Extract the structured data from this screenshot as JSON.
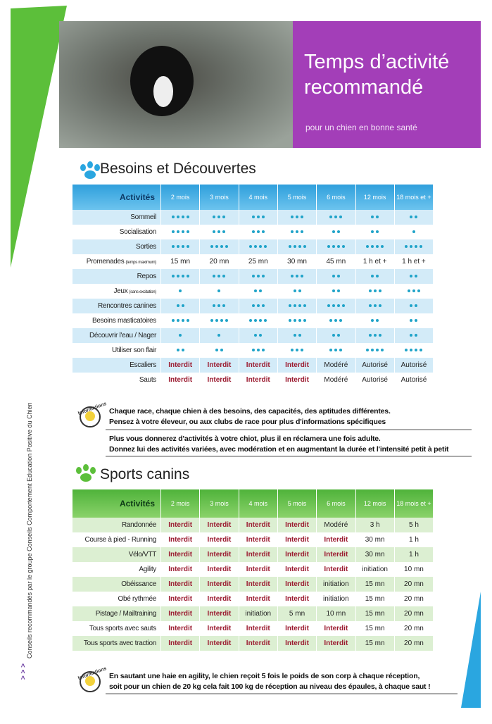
{
  "header": {
    "title_lines": [
      "Temps d’activité",
      "recommandé"
    ],
    "subtitle": "pour un chien en bonne santé"
  },
  "side_note": "Conseils recommandés par le groupe Conseils Comportement Education Positive du Chien",
  "side_arrows": "> > >",
  "info_label": "Informations",
  "section1": {
    "title": "Besoins et Découvertes",
    "table": {
      "header": [
        "Activités",
        "2 mois",
        "3 mois",
        "4 mois",
        "5 mois",
        "6 mois",
        "12 mois",
        "18 mois et +"
      ],
      "rows": [
        {
          "label": "Sommeil",
          "cells": [
            4,
            3,
            3,
            3,
            3,
            2,
            2
          ]
        },
        {
          "label": "Socialisation",
          "cells": [
            4,
            3,
            3,
            3,
            2,
            2,
            1
          ]
        },
        {
          "label": "Sorties",
          "cells": [
            4,
            4,
            4,
            4,
            4,
            4,
            4
          ]
        },
        {
          "label": "Promenades",
          "note": "(temps maximum)",
          "cells": [
            "15 mn",
            "20 mn",
            "25 mn",
            "30 mn",
            "45 mn",
            "1 h et +",
            "1 h et +"
          ]
        },
        {
          "label": "Repos",
          "cells": [
            4,
            3,
            3,
            3,
            2,
            2,
            2
          ]
        },
        {
          "label": "Jeux",
          "note": "(sans excitation)",
          "cells": [
            1,
            1,
            2,
            2,
            2,
            3,
            3
          ]
        },
        {
          "label": "Rencontres canines",
          "cells": [
            2,
            3,
            3,
            4,
            4,
            3,
            2
          ]
        },
        {
          "label": "Besoins masticatoires",
          "cells": [
            4,
            4,
            4,
            4,
            3,
            2,
            2
          ]
        },
        {
          "label": "Découvrir l'eau / Nager",
          "cells": [
            1,
            1,
            2,
            2,
            2,
            3,
            2
          ]
        },
        {
          "label": "Utiliser son flair",
          "cells": [
            2,
            2,
            3,
            3,
            3,
            4,
            4
          ]
        },
        {
          "label": "Escaliers",
          "cells": [
            "Interdit",
            "Interdit",
            "Interdit",
            "Interdit",
            "Modéré",
            "Autorisé",
            "Autorisé"
          ]
        },
        {
          "label": "Sauts",
          "cells": [
            "Interdit",
            "Interdit",
            "Interdit",
            "Interdit",
            "Modéré",
            "Autorisé",
            "Autorisé"
          ]
        }
      ]
    },
    "info": [
      [
        "Chaque race, chaque chien à des besoins, des capacités, des aptitudes différentes.",
        "Pensez à votre éleveur, ou aux clubs de race pour plus d'informations spécifiques"
      ],
      [
        "Plus vous donnerez d'activités à votre chiot, plus il en réclamera une fois adulte.",
        "Donnez lui des activités variées, avec modération et en augmentant la durée et l'intensité petit à petit"
      ]
    ]
  },
  "section2": {
    "title": "Sports canins",
    "table": {
      "header": [
        "Activités",
        "2 mois",
        "3 mois",
        "4 mois",
        "5 mois",
        "6 mois",
        "12 mois",
        "18 mois et +"
      ],
      "rows": [
        {
          "label": "Randonnée",
          "cells": [
            "Interdit",
            "Interdit",
            "Interdit",
            "Interdit",
            "Modéré",
            "3 h",
            "5 h"
          ]
        },
        {
          "label": "Course à pied - Running",
          "cells": [
            "Interdit",
            "Interdit",
            "Interdit",
            "Interdit",
            "Interdit",
            "30 mn",
            "1 h"
          ]
        },
        {
          "label": "Vélo/VTT",
          "cells": [
            "Interdit",
            "Interdit",
            "Interdit",
            "Interdit",
            "Interdit",
            "30 mn",
            "1 h"
          ]
        },
        {
          "label": "Agility",
          "cells": [
            "Interdit",
            "Interdit",
            "Interdit",
            "Interdit",
            "Interdit",
            "initiation",
            "10 mn"
          ]
        },
        {
          "label": "Obéissance",
          "cells": [
            "Interdit",
            "Interdit",
            "Interdit",
            "Interdit",
            "initiation",
            "15 mn",
            "20 mn"
          ]
        },
        {
          "label": "Obé rythmée",
          "cells": [
            "Interdit",
            "Interdit",
            "Interdit",
            "Interdit",
            "initiation",
            "15 mn",
            "20 mn"
          ]
        },
        {
          "label": "Pistage / Mailtraining",
          "cells": [
            "Interdit",
            "Interdit",
            "initiation",
            "5 mn",
            "10 mn",
            "15 mn",
            "20 mn"
          ]
        },
        {
          "label": "Tous sports avec sauts",
          "cells": [
            "Interdit",
            "Interdit",
            "Interdit",
            "Interdit",
            "Interdit",
            "15 mn",
            "20 mn"
          ]
        },
        {
          "label": "Tous sports avec traction",
          "cells": [
            "Interdit",
            "Interdit",
            "Interdit",
            "Interdit",
            "Interdit",
            "15 mn",
            "20 mn"
          ]
        }
      ]
    },
    "info": [
      [
        "En sautant une haie en agility, le chien reçoit 5 fois le poids de son corp à chaque réception,",
        "soit pour un chien de 20 kg cela fait 100 kg de réception au niveau des épaules, à chaque saut !"
      ]
    ]
  }
}
